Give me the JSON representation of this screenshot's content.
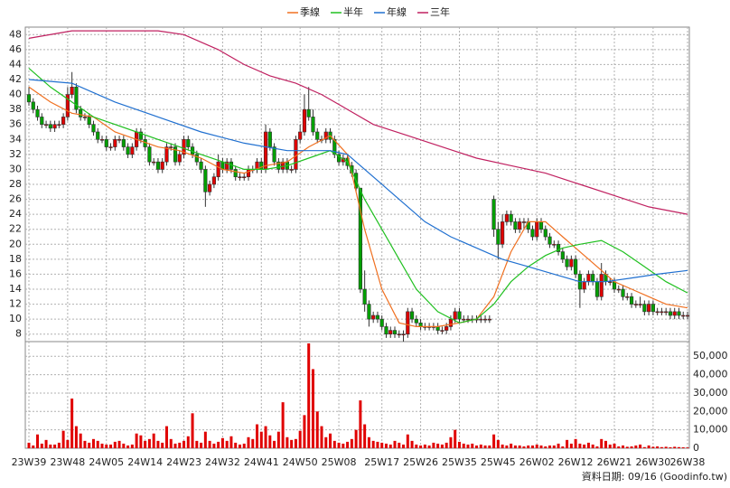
{
  "chart_data": {
    "type": "candlestick",
    "categories": [
      "23W39",
      null,
      null,
      null,
      null,
      null,
      null,
      null,
      null,
      "23W48",
      null,
      null,
      null,
      null,
      null,
      null,
      null,
      null,
      "24W05",
      null,
      null,
      null,
      null,
      null,
      null,
      null,
      null,
      "24W14",
      null,
      null,
      null,
      null,
      null,
      null,
      null,
      null,
      "24W23",
      null,
      null,
      null,
      null,
      null,
      null,
      null,
      null,
      "24W32",
      null,
      null,
      null,
      null,
      null,
      null,
      null,
      null,
      "24W41",
      null,
      null,
      null,
      null,
      null,
      null,
      null,
      null,
      "24W50",
      null,
      null,
      null,
      null,
      null,
      null,
      null,
      null,
      "25W08",
      null,
      null,
      null,
      null,
      null,
      null,
      null,
      null,
      null,
      "25W17",
      null,
      null,
      null,
      null,
      null,
      null,
      null,
      null,
      "25W26",
      null,
      null,
      null,
      null,
      null,
      null,
      null,
      null,
      "25W35",
      null,
      null,
      null,
      null,
      null,
      null,
      null,
      null,
      "25W45",
      null,
      null,
      null,
      null,
      null,
      null,
      null,
      null,
      "26W02",
      null,
      null,
      null,
      null,
      null,
      null,
      null,
      null,
      "26W12",
      null,
      null,
      null,
      null,
      null,
      null,
      null,
      null,
      "26W21",
      null,
      null,
      null,
      null,
      null,
      null,
      null,
      null,
      "26W30",
      null,
      null,
      null,
      null,
      null,
      null,
      null,
      "26W38"
    ],
    "ohlc": [
      [
        40,
        41,
        38.5,
        39
      ],
      [
        39,
        39.5,
        37.5,
        38
      ],
      [
        38,
        38.5,
        36.5,
        37
      ],
      [
        37,
        37.5,
        35.5,
        36
      ],
      [
        36,
        36.5,
        35.5,
        36
      ],
      [
        36,
        36.5,
        35,
        35.5
      ],
      [
        35.5,
        36.5,
        35,
        36
      ],
      [
        36,
        36.5,
        35.5,
        36
      ],
      [
        36,
        37.5,
        35.5,
        37
      ],
      [
        37,
        41,
        36.5,
        40
      ],
      [
        40,
        43,
        39.5,
        41
      ],
      [
        41,
        41.5,
        37.5,
        38
      ],
      [
        38,
        38.5,
        36.5,
        37
      ],
      [
        37,
        37.5,
        36.5,
        37
      ],
      [
        37,
        37.5,
        35.5,
        36
      ],
      [
        36,
        36.5,
        34.5,
        35
      ],
      [
        35,
        35.5,
        33.5,
        34
      ],
      [
        34,
        34.5,
        33.5,
        34
      ],
      [
        34,
        34.5,
        32.5,
        33
      ],
      [
        33,
        33.5,
        32.5,
        33
      ],
      [
        33,
        34.5,
        32.5,
        34
      ],
      [
        34,
        34.5,
        33.5,
        34
      ],
      [
        34,
        34.5,
        32.5,
        33
      ],
      [
        33,
        33.5,
        31.5,
        32
      ],
      [
        32,
        33.5,
        31.5,
        33
      ],
      [
        33,
        35.5,
        32.5,
        35
      ],
      [
        35,
        35.5,
        33.5,
        34
      ],
      [
        34,
        34.5,
        32.5,
        33
      ],
      [
        33,
        33.5,
        30.5,
        31
      ],
      [
        31,
        31.5,
        30.5,
        31
      ],
      [
        31,
        31.5,
        29.5,
        30
      ],
      [
        30,
        31.5,
        29.5,
        31
      ],
      [
        31,
        33.5,
        30.5,
        33
      ],
      [
        33,
        33.5,
        32.5,
        33
      ],
      [
        33,
        33.5,
        30.5,
        31
      ],
      [
        31,
        32.5,
        30.5,
        32
      ],
      [
        32,
        34.5,
        31.5,
        34
      ],
      [
        34,
        34.5,
        32.5,
        33
      ],
      [
        33,
        33.5,
        31.5,
        32
      ],
      [
        32,
        32.5,
        30.5,
        31
      ],
      [
        31,
        31.5,
        29.5,
        30
      ],
      [
        30,
        30.5,
        25,
        27
      ],
      [
        27,
        28.5,
        26.5,
        28
      ],
      [
        28,
        29.5,
        27.5,
        29
      ],
      [
        29,
        32,
        28.5,
        31
      ],
      [
        31,
        31.5,
        29.5,
        30
      ],
      [
        30,
        31.5,
        29.5,
        31
      ],
      [
        31,
        31.5,
        29.5,
        30
      ],
      [
        30,
        30.5,
        28.5,
        29
      ],
      [
        29,
        29.5,
        28.5,
        29
      ],
      [
        29,
        29.5,
        28.5,
        29
      ],
      [
        29,
        30.5,
        28.5,
        30
      ],
      [
        30,
        30.5,
        29.5,
        30
      ],
      [
        30,
        31.5,
        29.5,
        31
      ],
      [
        31,
        31.5,
        29.5,
        30
      ],
      [
        30,
        36,
        29.5,
        35
      ],
      [
        35,
        35.5,
        32.5,
        33
      ],
      [
        33,
        33.5,
        30.5,
        31
      ],
      [
        31,
        31.5,
        29.5,
        30
      ],
      [
        30,
        31.5,
        29.5,
        31
      ],
      [
        31,
        31.5,
        29.5,
        30
      ],
      [
        30,
        30.5,
        29.5,
        30
      ],
      [
        30,
        34.5,
        29.5,
        34
      ],
      [
        34,
        36,
        33.5,
        35
      ],
      [
        35,
        40,
        34.5,
        38
      ],
      [
        38,
        41,
        36.5,
        37
      ],
      [
        37,
        38,
        34.5,
        35
      ],
      [
        35,
        35.5,
        33.5,
        34
      ],
      [
        34,
        34.5,
        33.5,
        34
      ],
      [
        34,
        35.5,
        33.5,
        35
      ],
      [
        35,
        35.5,
        33.5,
        34
      ],
      [
        34,
        34.5,
        31.5,
        32
      ],
      [
        32,
        32.5,
        30.5,
        31
      ],
      [
        31,
        32,
        30.5,
        31.5
      ],
      [
        31.5,
        32,
        30,
        30.5
      ],
      [
        30.5,
        31,
        29,
        29.5
      ],
      [
        29.5,
        30,
        27,
        27.5
      ],
      [
        27.5,
        27.5,
        13.5,
        14
      ],
      [
        14,
        16.5,
        11,
        12
      ],
      [
        12,
        12.5,
        9,
        10
      ],
      [
        10,
        11,
        9.5,
        10.5
      ],
      [
        10.5,
        11,
        9.5,
        10
      ],
      [
        10,
        10.5,
        8.5,
        9
      ],
      [
        9,
        9.5,
        7.5,
        8
      ],
      [
        8,
        9,
        7.5,
        8.5
      ],
      [
        8.5,
        9,
        7.5,
        8
      ],
      [
        8,
        8.5,
        7.5,
        8
      ],
      [
        8,
        8.5,
        7,
        8
      ],
      [
        8,
        11.5,
        7.5,
        11
      ],
      [
        11,
        11.5,
        9.5,
        10
      ],
      [
        10,
        10.5,
        9,
        9.5
      ],
      [
        9.5,
        10,
        8.5,
        9
      ],
      [
        9,
        9.5,
        8.5,
        9
      ],
      [
        9,
        9.5,
        8.5,
        9
      ],
      [
        9,
        9.5,
        8.5,
        9
      ],
      [
        9,
        9.5,
        8,
        8.5
      ],
      [
        8.5,
        9,
        8,
        8.5
      ],
      [
        8.5,
        9.5,
        8,
        9
      ],
      [
        9,
        10.5,
        8.5,
        10
      ],
      [
        10,
        11.5,
        9.5,
        11
      ],
      [
        11,
        11.5,
        9.5,
        10
      ],
      [
        10,
        10.5,
        9.5,
        10
      ],
      [
        10,
        10.5,
        9.5,
        10
      ],
      [
        10,
        10.5,
        9.5,
        10
      ],
      [
        10,
        10.5,
        9.5,
        10
      ],
      [
        10,
        10.5,
        9.5,
        10
      ],
      [
        10,
        10.5,
        9.5,
        10
      ],
      [
        10,
        10.5,
        9.5,
        10
      ],
      [
        26,
        26.5,
        21,
        22
      ],
      [
        22,
        23,
        18,
        20
      ],
      [
        20,
        24,
        19.5,
        23
      ],
      [
        23,
        24.5,
        22.5,
        24
      ],
      [
        24,
        24.5,
        22.5,
        23
      ],
      [
        23,
        23.5,
        21.5,
        22
      ],
      [
        22,
        23.5,
        21.5,
        23
      ],
      [
        23,
        23.5,
        22,
        23
      ],
      [
        23,
        23.5,
        21.5,
        22
      ],
      [
        22,
        22.5,
        20.5,
        21
      ],
      [
        21,
        23.5,
        20.5,
        23
      ],
      [
        23,
        23.5,
        21.5,
        22
      ],
      [
        22,
        22.5,
        20.5,
        21
      ],
      [
        21,
        21.5,
        19.5,
        20
      ],
      [
        20,
        20.5,
        19.5,
        20
      ],
      [
        20,
        20.5,
        18.5,
        19
      ],
      [
        19,
        19.5,
        17.5,
        18
      ],
      [
        18,
        18.5,
        16.5,
        17
      ],
      [
        17,
        18.5,
        16.5,
        18
      ],
      [
        18,
        18.5,
        15.5,
        16
      ],
      [
        16,
        16.5,
        11.5,
        14
      ],
      [
        14,
        15.5,
        13.5,
        15
      ],
      [
        15,
        16.5,
        14.5,
        16
      ],
      [
        16,
        16.5,
        14.5,
        15
      ],
      [
        15,
        15.5,
        12.5,
        13
      ],
      [
        13,
        17.5,
        12.5,
        16
      ],
      [
        16,
        16.5,
        14.5,
        15
      ],
      [
        15,
        15.5,
        14.5,
        15
      ],
      [
        15,
        15.5,
        13.5,
        14
      ],
      [
        14,
        14.5,
        13.5,
        14
      ],
      [
        14,
        14.5,
        12.5,
        13
      ],
      [
        13,
        13.5,
        12.5,
        13
      ],
      [
        13,
        13.5,
        11.5,
        12
      ],
      [
        12,
        12.5,
        11.5,
        12
      ],
      [
        12,
        13,
        11.5,
        12
      ],
      [
        12,
        12.5,
        10.5,
        11
      ],
      [
        11,
        12.5,
        10.5,
        12
      ],
      [
        12,
        12.5,
        10.5,
        11
      ],
      [
        11,
        11.5,
        10.5,
        11
      ],
      [
        11,
        11.5,
        10.5,
        11
      ],
      [
        11,
        11.5,
        10.5,
        11
      ],
      [
        11,
        11.5,
        10,
        10.5
      ],
      [
        10.5,
        11.5,
        10,
        11
      ],
      [
        11,
        11.5,
        10,
        10.5
      ],
      [
        10.5,
        11,
        10,
        10.5
      ],
      [
        10.5,
        11,
        10,
        10.5
      ]
    ],
    "volume": [
      3000,
      1500,
      7500,
      2500,
      4500,
      2000,
      2000,
      3000,
      9500,
      4500,
      27000,
      12000,
      8000,
      4000,
      3000,
      5000,
      4000,
      2500,
      2000,
      2000,
      3500,
      4000,
      2500,
      1500,
      2000,
      8000,
      7000,
      4000,
      5000,
      8000,
      4000,
      3000,
      12000,
      5000,
      2500,
      3000,
      4000,
      6500,
      19000,
      4000,
      3000,
      9000,
      4000,
      2500,
      3500,
      5500,
      4000,
      6500,
      3000,
      2000,
      2500,
      6000,
      5000,
      13000,
      9000,
      12000,
      7000,
      4000,
      9000,
      25000,
      6000,
      4500,
      5000,
      9500,
      18000,
      57000,
      43000,
      20000,
      12000,
      6000,
      8000,
      4000,
      3000,
      2500,
      3500,
      5000,
      10000,
      26000,
      13000,
      6000,
      4000,
      3500,
      3000,
      2500,
      2000,
      4000,
      3000,
      2000,
      7500,
      4000,
      2000,
      1500,
      2000,
      1500,
      3000,
      2500,
      2000,
      3000,
      6000,
      10000,
      3500,
      2500,
      2000,
      2500,
      1500,
      2000,
      1500,
      1500,
      7500,
      4500,
      2000,
      1500,
      2500,
      1500,
      1500,
      1000,
      1500,
      1500,
      2000,
      1500,
      1000,
      1500,
      1500,
      2500,
      1000,
      4500,
      2500,
      5000,
      2500,
      2000,
      3000,
      2000,
      1000,
      5000,
      4000,
      2000,
      2500,
      1000,
      1500,
      800,
      1000,
      1500,
      2000,
      600,
      1500,
      800,
      1000,
      600,
      800,
      500,
      800,
      600,
      500,
      400
    ],
    "up_color": "#e00000",
    "down_color": "#00a000",
    "volume_color": "#e00000",
    "series": [
      {
        "name": "季線",
        "color": "#f07020",
        "x": [
          0,
          5,
          10,
          15,
          20,
          25,
          30,
          35,
          40,
          45,
          50,
          55,
          60,
          65,
          70,
          74,
          78,
          82,
          86,
          90,
          95,
          100,
          104,
          108,
          112,
          116,
          120,
          124,
          128,
          132,
          136,
          140,
          144,
          148,
          153
        ],
        "values": [
          41,
          39,
          37.5,
          37,
          35,
          34,
          33,
          32.5,
          31.5,
          30,
          29.5,
          30.5,
          31,
          33,
          34.5,
          32,
          22,
          14,
          9.5,
          9,
          9,
          9.5,
          10,
          13,
          19,
          23,
          23,
          21,
          19,
          17,
          15,
          14,
          13,
          12,
          11.5
        ]
      },
      {
        "name": "半年",
        "color": "#20c020",
        "x": [
          0,
          5,
          10,
          15,
          20,
          25,
          30,
          35,
          40,
          45,
          50,
          55,
          60,
          65,
          70,
          74,
          78,
          82,
          86,
          90,
          95,
          100,
          104,
          108,
          112,
          116,
          120,
          124,
          128,
          133,
          138,
          143,
          148,
          153
        ],
        "values": [
          43.5,
          41,
          39,
          37,
          36,
          35,
          34,
          33,
          32,
          31,
          30,
          30,
          30.5,
          31.5,
          32.5,
          31,
          26,
          22,
          18,
          14,
          11,
          9.5,
          10,
          12,
          15,
          17,
          18.5,
          19.5,
          20,
          20.5,
          19,
          17,
          15,
          13.5
        ]
      },
      {
        "name": "年線",
        "color": "#2070d0",
        "x": [
          0,
          10,
          20,
          30,
          40,
          50,
          60,
          70,
          74,
          80,
          86,
          92,
          98,
          104,
          110,
          116,
          122,
          128,
          134,
          140,
          146,
          153
        ],
        "values": [
          42,
          41.5,
          39,
          37,
          35,
          33.5,
          32.5,
          32.5,
          32,
          29,
          26,
          23,
          21,
          19.5,
          18,
          17,
          16,
          15,
          15,
          15.5,
          16,
          16.5
        ]
      },
      {
        "name": "三年",
        "color": "#c02060",
        "x": [
          0,
          10,
          20,
          30,
          36,
          44,
          50,
          56,
          62,
          68,
          74,
          80,
          88,
          96,
          104,
          112,
          120,
          128,
          136,
          144,
          153
        ],
        "values": [
          47.5,
          48.5,
          48.5,
          48.5,
          48,
          46,
          44,
          42.5,
          41.5,
          40,
          38,
          36,
          34.5,
          33,
          31.5,
          30.5,
          29.5,
          28,
          26.5,
          25,
          24
        ]
      }
    ],
    "ylim": [
      7,
      49
    ],
    "yticks": [
      8,
      10,
      12,
      14,
      16,
      18,
      20,
      22,
      24,
      26,
      28,
      30,
      32,
      34,
      36,
      38,
      40,
      42,
      44,
      46,
      48
    ],
    "y2lim": [
      0,
      57000
    ],
    "y2ticks": [
      0,
      {
        "value": 10000,
        "label": "10,000"
      },
      {
        "value": 20000,
        "label": "20,000"
      },
      {
        "value": 30000,
        "label": "30,000"
      },
      {
        "value": 40000,
        "label": "40,000"
      },
      {
        "value": 50000,
        "label": "50,000"
      }
    ],
    "grid": true,
    "footer": "資料日期: 09/16 (Goodinfo.tw)"
  }
}
